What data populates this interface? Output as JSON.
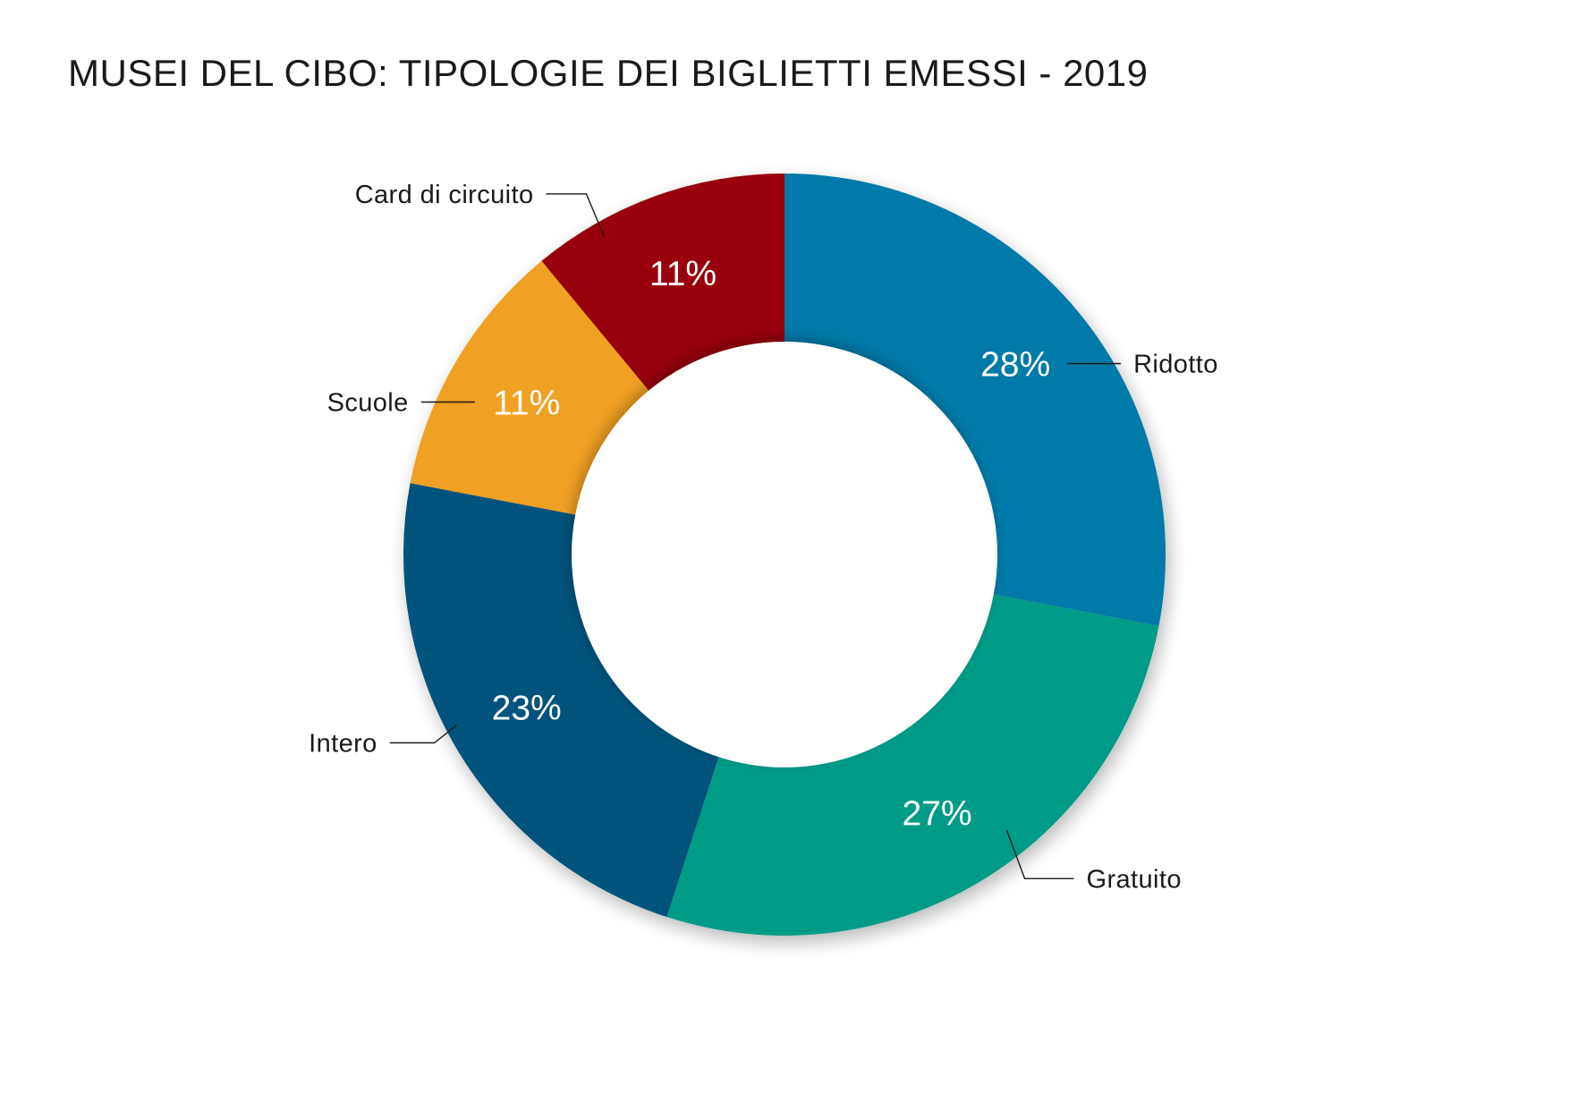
{
  "chart_data": {
    "type": "pie",
    "variant": "donut",
    "title": "MUSEI DEL CIBO: TIPOLOGIE DEI BIGLIETTI EMESSI - 2019",
    "slices": [
      {
        "label": "Ridotto",
        "value": 28,
        "value_label": "28%",
        "color": "#027aa8"
      },
      {
        "label": "Gratuito",
        "value": 27,
        "value_label": "27%",
        "color": "#039b87"
      },
      {
        "label": "Intero",
        "value": 23,
        "value_label": "23%",
        "color": "#06527c"
      },
      {
        "label": "Scuole",
        "value": 11,
        "value_label": "11%",
        "color": "#f0a020"
      },
      {
        "label": "Card di circuito",
        "value": 11,
        "value_label": "11%",
        "color": "#98000a"
      }
    ],
    "start": "12 o'clock",
    "direction": "clockwise",
    "legend": "none",
    "labels": "outside with leader lines"
  }
}
